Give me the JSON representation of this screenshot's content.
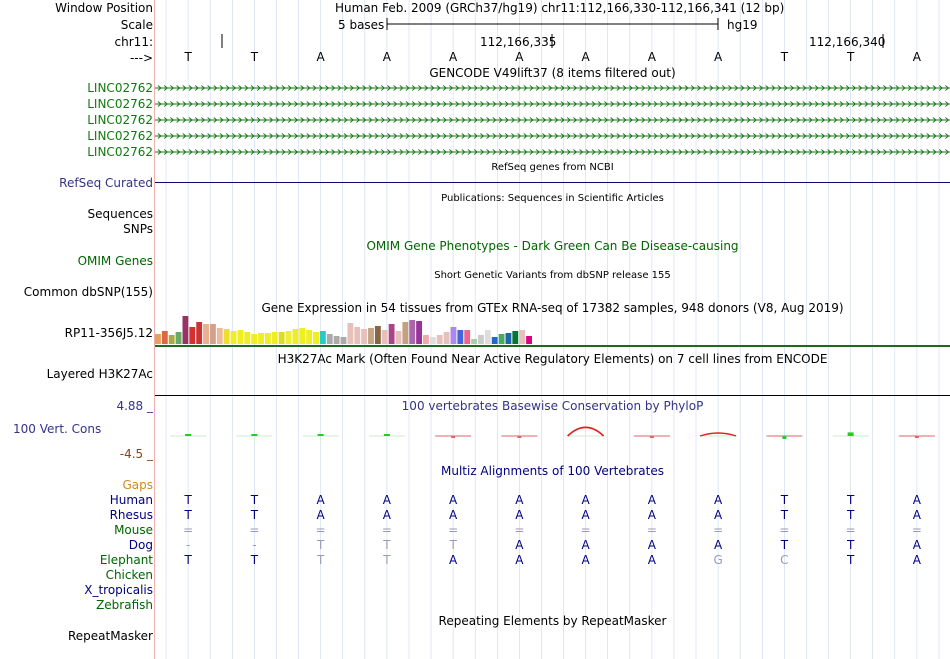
{
  "header": {
    "window_position_label": "Window Position",
    "window_position_value": "Human Feb. 2009 (GRCh37/hg19)   chr11:112,166,330-112,166,341 (12 bp)",
    "scale_label": "Scale",
    "scale_value": "5 bases",
    "assembly": "hg19",
    "chrom_label": "chr11:",
    "coord_1": "112,166,335",
    "coord_2": "112,166,340",
    "strand_label": "--->"
  },
  "bases": [
    "T",
    "T",
    "A",
    "A",
    "A",
    "A",
    "A",
    "A",
    "A",
    "T",
    "T",
    "A"
  ],
  "gencode": {
    "title": "GENCODE V49lift37 (8 items filtered out)",
    "genes": [
      "LINC02762",
      "LINC02762",
      "LINC02762",
      "LINC02762",
      "LINC02762"
    ],
    "color": "#117711"
  },
  "refseq": {
    "title": "RefSeq genes from NCBI",
    "label": "RefSeq Curated"
  },
  "publications": {
    "title": "Publications: Sequences in Scientific Articles",
    "label_1": "Sequences",
    "label_2": "SNPs"
  },
  "omim": {
    "title": "OMIM Gene Phenotypes - Dark Green Can Be Disease-causing",
    "label": "OMIM Genes"
  },
  "dbsnp": {
    "title": "Short Genetic Variants from dbSNP release 155",
    "label": "Common dbSNP(155)"
  },
  "gtex": {
    "title": "Gene Expression in 54 tissues from GTEx RNA-seq of 17382 samples, 948 donors (V8, Aug 2019)",
    "label": "RP11-356J5.12",
    "bars": [
      {
        "h": 10,
        "c": "#e8a060"
      },
      {
        "h": 13,
        "c": "#dd6644"
      },
      {
        "h": 9,
        "c": "#aaaa44"
      },
      {
        "h": 12,
        "c": "#66aa66"
      },
      {
        "h": 28,
        "c": "#993366"
      },
      {
        "h": 17,
        "c": "#d43030"
      },
      {
        "h": 22,
        "c": "#cc3333"
      },
      {
        "h": 20,
        "c": "#e8b090"
      },
      {
        "h": 20,
        "c": "#d2a08c"
      },
      {
        "h": 16,
        "c": "#eebb99"
      },
      {
        "h": 15,
        "c": "#eedd33"
      },
      {
        "h": 13,
        "c": "#eeee22"
      },
      {
        "h": 14,
        "c": "#eeee22"
      },
      {
        "h": 12,
        "c": "#eeee22"
      },
      {
        "h": 10,
        "c": "#eeee22"
      },
      {
        "h": 11,
        "c": "#eeee22"
      },
      {
        "h": 11,
        "c": "#eeee22"
      },
      {
        "h": 12,
        "c": "#eeee22"
      },
      {
        "h": 12,
        "c": "#dddd22"
      },
      {
        "h": 13,
        "c": "#eeee33"
      },
      {
        "h": 15,
        "c": "#eeee22"
      },
      {
        "h": 16,
        "c": "#eeee22"
      },
      {
        "h": 14,
        "c": "#eeee22"
      },
      {
        "h": 12,
        "c": "#eeee22"
      },
      {
        "h": 13,
        "c": "#22cccc"
      },
      {
        "h": 10,
        "c": "#aaaaaa"
      },
      {
        "h": 8,
        "c": "#aaaaaa"
      },
      {
        "h": 7,
        "c": "#aaaaaa"
      },
      {
        "h": 21,
        "c": "#e8c0bb"
      },
      {
        "h": 17,
        "c": "#e8c0bb"
      },
      {
        "h": 15,
        "c": "#e8c0bb"
      },
      {
        "h": 16,
        "c": "#c4a484"
      },
      {
        "h": 18,
        "c": "#886644"
      },
      {
        "h": 14,
        "c": "#e8c0bb"
      },
      {
        "h": 20,
        "c": "#aa4488"
      },
      {
        "h": 13,
        "c": "#e8c0bb"
      },
      {
        "h": 22,
        "c": "#c4a080"
      },
      {
        "h": 24,
        "c": "#aa66aa"
      },
      {
        "h": 23,
        "c": "#993399"
      },
      {
        "h": 9,
        "c": "#eeaaaa"
      },
      {
        "h": 7,
        "c": "#dddddd"
      },
      {
        "h": 9,
        "c": "#e8c0bb"
      },
      {
        "h": 12,
        "c": "#e8c0bb"
      },
      {
        "h": 17,
        "c": "#aa88ee"
      },
      {
        "h": 14,
        "c": "#4466dd"
      },
      {
        "h": 14,
        "c": "#ee6688"
      },
      {
        "h": 5,
        "c": "#aaccaa"
      },
      {
        "h": 9,
        "c": "#cccccc"
      },
      {
        "h": 14,
        "c": "#dddddd"
      },
      {
        "h": 7,
        "c": "#2266cc"
      },
      {
        "h": 10,
        "c": "#44aa66"
      },
      {
        "h": 11,
        "c": "#2266aa"
      },
      {
        "h": 13,
        "c": "#007733"
      },
      {
        "h": 14,
        "c": "#e8c0bb"
      },
      {
        "h": 8,
        "c": "#dd0088"
      }
    ]
  },
  "h3k27ac": {
    "title": "H3K27Ac Mark (Often Found Near Active Regulatory Elements) on 7 cell lines from ENCODE",
    "label": "Layered H3K27Ac"
  },
  "phylop": {
    "title": "100 vertebrates Basewise Conservation by PhyloP",
    "label": "100 Vert. Cons",
    "max_label": "4.88 _",
    "min_label": "-4.5 _",
    "ylim": [
      -4.5,
      4.88
    ],
    "scores": [
      0.3,
      0.2,
      0.0,
      0.3,
      -0.1,
      -0.2,
      1.8,
      -0.1,
      1.0,
      -0.5,
      0.6,
      -0.2
    ]
  },
  "multiz": {
    "title": "Multiz Alignments of 100 Vertebrates",
    "gaps_label": "Gaps",
    "species": [
      {
        "name": "Human",
        "cls": "navy",
        "seq": [
          "T",
          "T",
          "A",
          "A",
          "A",
          "A",
          "A",
          "A",
          "A",
          "T",
          "T",
          "A"
        ],
        "dim": []
      },
      {
        "name": "Rhesus",
        "cls": "navy",
        "seq": [
          "T",
          "T",
          "A",
          "A",
          "A",
          "A",
          "A",
          "A",
          "A",
          "T",
          "T",
          "A"
        ],
        "dim": []
      },
      {
        "name": "Mouse",
        "cls": "green",
        "seq": [
          "=",
          "=",
          "=",
          "=",
          "=",
          "=",
          "=",
          "=",
          "=",
          "=",
          "=",
          "="
        ],
        "dim": [
          0,
          1,
          2,
          3,
          4,
          5,
          6,
          7,
          8,
          9,
          10,
          11
        ]
      },
      {
        "name": "Dog",
        "cls": "navy",
        "seq": [
          "-",
          "-",
          "T",
          "T",
          "T",
          "A",
          "A",
          "A",
          "A",
          "T",
          "T",
          "A"
        ],
        "dim": [
          0,
          1,
          2,
          3,
          4
        ]
      },
      {
        "name": "Elephant",
        "cls": "green",
        "seq": [
          "T",
          "T",
          "T",
          "T",
          "A",
          "A",
          "A",
          "A",
          "G",
          "C",
          "T",
          "A"
        ],
        "dim": [
          2,
          3,
          8,
          9
        ]
      },
      {
        "name": "Chicken",
        "cls": "green",
        "seq": [],
        "dim": []
      },
      {
        "name": "X_tropicalis",
        "cls": "navy",
        "seq": [],
        "dim": []
      },
      {
        "name": "Zebrafish",
        "cls": "green",
        "seq": [],
        "dim": []
      }
    ]
  },
  "repeatmasker": {
    "title": "Repeating Elements by RepeatMasker",
    "label": "RepeatMasker"
  }
}
